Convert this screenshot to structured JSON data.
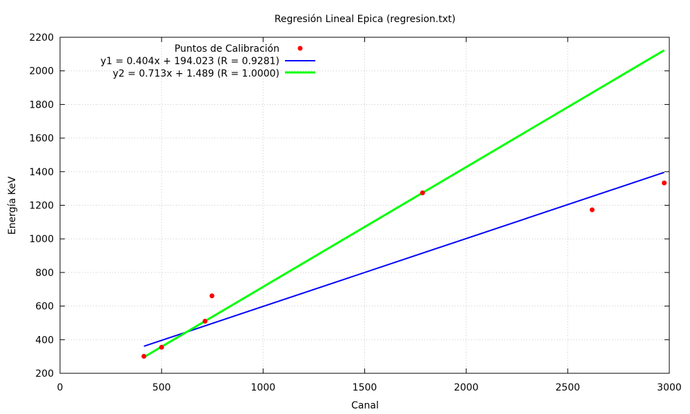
{
  "chart_data": {
    "type": "scatter",
    "title": "Regresión Lineal Epica (regresion.txt)",
    "xlabel": "Canal",
    "ylabel": "Energía KeV",
    "xlim": [
      0,
      3000
    ],
    "ylim": [
      200,
      2200
    ],
    "xticks": [
      0,
      500,
      1000,
      1500,
      2000,
      2500,
      3000
    ],
    "yticks": [
      200,
      400,
      600,
      800,
      1000,
      1200,
      1400,
      1600,
      1800,
      2000,
      2200
    ],
    "grid": true,
    "legend_position": "top-left",
    "series": [
      {
        "name": "Puntos de Calibración",
        "kind": "points",
        "color": "#ff0000",
        "points": [
          {
            "x": 413,
            "y": 301
          },
          {
            "x": 500,
            "y": 355
          },
          {
            "x": 714,
            "y": 510
          },
          {
            "x": 748,
            "y": 661
          },
          {
            "x": 1785,
            "y": 1274
          },
          {
            "x": 2620,
            "y": 1173
          },
          {
            "x": 2975,
            "y": 1333
          }
        ]
      },
      {
        "name": "y1 = 0.404x + 194.023  (R = 0.9281)",
        "kind": "line",
        "color": "#0000ff",
        "slope": 0.404,
        "intercept": 194.023,
        "x_range": [
          413,
          2975
        ]
      },
      {
        "name": "y2 = 0.713x + 1.489  (R = 1.0000)",
        "kind": "line",
        "color": "#00ff00",
        "slope": 0.713,
        "intercept": 1.489,
        "x_range": [
          413,
          2975
        ]
      }
    ]
  }
}
